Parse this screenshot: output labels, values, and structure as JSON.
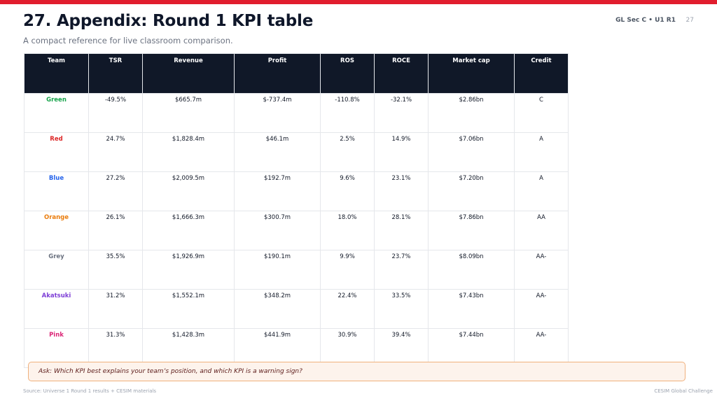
{
  "header": {
    "title": "27. Appendix: Round 1 KPI table",
    "subtitle": "A compact reference for live classroom comparison.",
    "course": "GL Sec C • U1 R1",
    "page_number": "27"
  },
  "table": {
    "columns": [
      "Team",
      "TSR",
      "Revenue",
      "Profit",
      "ROS",
      "ROCE",
      "Market cap",
      "Credit"
    ],
    "rows": [
      {
        "team": "Green",
        "team_color": "#16a34a",
        "tsr": "-49.5%",
        "revenue": "$665.7m",
        "profit": "$-737.4m",
        "ros": "-110.8%",
        "roce": "-32.1%",
        "market_cap": "$2.86bn",
        "credit": "C"
      },
      {
        "team": "Red",
        "team_color": "#dc2626",
        "tsr": "24.7%",
        "revenue": "$1,828.4m",
        "profit": "$46.1m",
        "ros": "2.5%",
        "roce": "14.9%",
        "market_cap": "$7.06bn",
        "credit": "A"
      },
      {
        "team": "Blue",
        "team_color": "#2563eb",
        "tsr": "27.2%",
        "revenue": "$2,009.5m",
        "profit": "$192.7m",
        "ros": "9.6%",
        "roce": "23.1%",
        "market_cap": "$7.20bn",
        "credit": "A"
      },
      {
        "team": "Orange",
        "team_color": "#ea7c0c",
        "tsr": "26.1%",
        "revenue": "$1,666.3m",
        "profit": "$300.7m",
        "ros": "18.0%",
        "roce": "28.1%",
        "market_cap": "$7.86bn",
        "credit": "AA"
      },
      {
        "team": "Grey",
        "team_color": "#6b7280",
        "tsr": "35.5%",
        "revenue": "$1,926.9m",
        "profit": "$190.1m",
        "ros": "9.9%",
        "roce": "23.7%",
        "market_cap": "$8.09bn",
        "credit": "AA-"
      },
      {
        "team": "Akatsuki",
        "team_color": "#7e3fd6",
        "tsr": "31.2%",
        "revenue": "$1,552.1m",
        "profit": "$348.2m",
        "ros": "22.4%",
        "roce": "33.5%",
        "market_cap": "$7.43bn",
        "credit": "AA-"
      },
      {
        "team": "Pink",
        "team_color": "#db2777",
        "tsr": "31.3%",
        "revenue": "$1,428.3m",
        "profit": "$441.9m",
        "ros": "30.9%",
        "roce": "39.4%",
        "market_cap": "$7.44bn",
        "credit": "AA-"
      }
    ]
  },
  "ask": "Ask: Which KPI best explains your team’s position, and which KPI is a warning sign?",
  "footer": {
    "source": "Source: Universe 1 Round 1 results + CESIM materials",
    "brand": "CESIM Global Challenge"
  },
  "colors": {
    "accent_bar": "#e11d2e",
    "table_header_bg": "#101828",
    "ask_border": "#f0b07c",
    "ask_bg": "#fdf3ec"
  }
}
